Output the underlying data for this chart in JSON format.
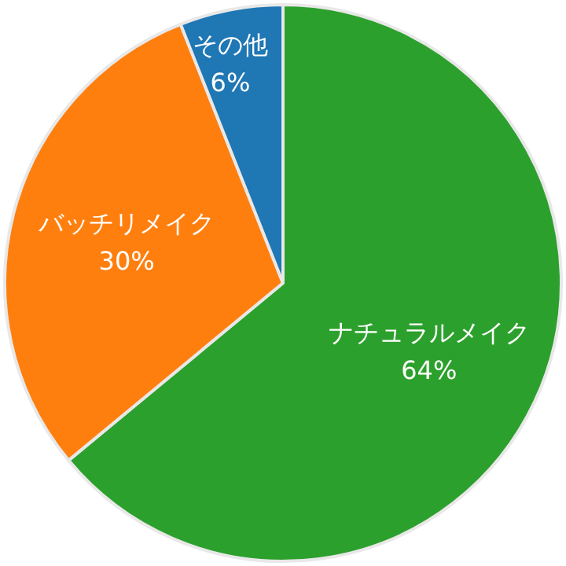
{
  "chart_data": {
    "type": "pie",
    "categories": [
      "ナチュラルメイク",
      "バッチリメイク",
      "その他"
    ],
    "values": [
      64,
      30,
      6
    ],
    "colors": [
      "#2ca02c",
      "#ff7f0e",
      "#1f77b4"
    ],
    "value_labels": [
      "64%",
      "30%",
      "6%"
    ],
    "legend": false
  }
}
